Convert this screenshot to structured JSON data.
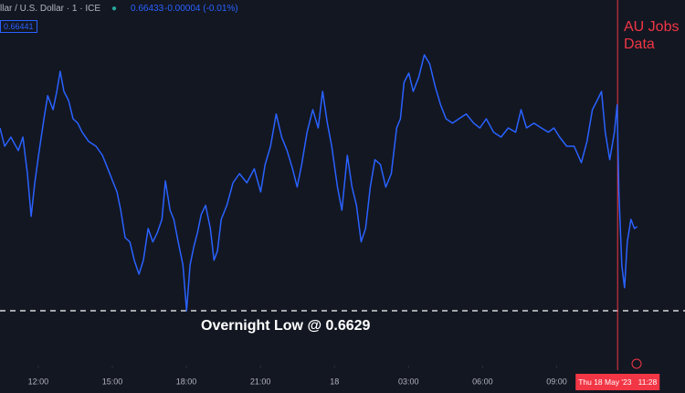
{
  "header": {
    "symbol": "llar / U.S. Dollar · 1 · ICE",
    "price": "0.66433",
    "change": "-0.00004 (-0.01%)",
    "price_label": "0.66441"
  },
  "chart_data": {
    "type": "line",
    "color": "#2962ff",
    "xlim": [
      -1.55,
      26.2
    ],
    "ylim": [
      0.662,
      0.668
    ],
    "xticks": [
      {
        "value": 0,
        "label": "12:00"
      },
      {
        "value": 3,
        "label": "15:00"
      },
      {
        "value": 6,
        "label": "18:00"
      },
      {
        "value": 9,
        "label": "21:00"
      },
      {
        "value": 12,
        "label": "18"
      },
      {
        "value": 15,
        "label": "03:00"
      },
      {
        "value": 18,
        "label": "06:00"
      },
      {
        "value": 21,
        "label": "09:00"
      }
    ],
    "x": [
      -1.55,
      -1.36,
      -1.11,
      -0.81,
      -0.62,
      -0.44,
      -0.29,
      -0.14,
      0.01,
      0.23,
      0.38,
      0.6,
      0.75,
      0.89,
      1.04,
      1.23,
      1.41,
      1.6,
      1.78,
      2.04,
      2.34,
      2.6,
      2.82,
      3.04,
      3.19,
      3.34,
      3.52,
      3.71,
      3.89,
      4.08,
      4.26,
      4.45,
      4.64,
      4.82,
      5.01,
      5.15,
      5.34,
      5.49,
      5.67,
      5.86,
      6.01,
      6.15,
      6.3,
      6.45,
      6.6,
      6.78,
      6.97,
      7.12,
      7.26,
      7.41,
      7.64,
      7.89,
      8.15,
      8.45,
      8.75,
      9.01,
      9.19,
      9.41,
      9.64,
      9.86,
      10.08,
      10.3,
      10.49,
      10.67,
      10.89,
      11.12,
      11.34,
      11.52,
      11.71,
      11.89,
      12.12,
      12.3,
      12.52,
      12.71,
      12.89,
      13.08,
      13.26,
      13.45,
      13.64,
      13.86,
      14.08,
      14.3,
      14.52,
      14.67,
      14.82,
      15.01,
      15.19,
      15.41,
      15.64,
      15.86,
      16.08,
      16.3,
      16.52,
      16.78,
      17.04,
      17.34,
      17.64,
      17.89,
      18.15,
      18.45,
      18.75,
      19.04,
      19.34,
      19.56,
      19.78,
      20.08,
      20.38,
      20.67,
      20.89,
      21.12,
      21.41,
      21.71,
      22.0,
      22.23,
      22.45,
      22.64,
      22.82,
      22.97,
      23.15,
      23.34,
      23.45,
      23.52,
      23.64,
      23.75,
      23.86,
      24.01,
      24.15,
      24.26
    ],
    "values": [
      0.6659,
      0.6656,
      0.66575,
      0.66553,
      0.66575,
      0.66515,
      0.66445,
      0.665,
      0.66545,
      0.66605,
      0.66643,
      0.6662,
      0.6665,
      0.66683,
      0.6665,
      0.66635,
      0.66605,
      0.66598,
      0.66583,
      0.66568,
      0.6656,
      0.66545,
      0.66523,
      0.665,
      0.66485,
      0.66455,
      0.6641,
      0.66403,
      0.66373,
      0.6635,
      0.66373,
      0.66425,
      0.66403,
      0.66418,
      0.6644,
      0.66503,
      0.66455,
      0.6644,
      0.66403,
      0.66365,
      0.6629,
      0.66365,
      0.66395,
      0.66418,
      0.66448,
      0.66463,
      0.66425,
      0.66373,
      0.66388,
      0.6644,
      0.66463,
      0.665,
      0.66515,
      0.665,
      0.66523,
      0.66485,
      0.6653,
      0.6656,
      0.66613,
      0.66575,
      0.66553,
      0.66523,
      0.66493,
      0.6653,
      0.66583,
      0.6662,
      0.6659,
      0.6665,
      0.66598,
      0.6656,
      0.66493,
      0.66455,
      0.66545,
      0.66493,
      0.66463,
      0.66403,
      0.66425,
      0.66493,
      0.66538,
      0.6653,
      0.66493,
      0.66515,
      0.6659,
      0.66605,
      0.66665,
      0.6668,
      0.6665,
      0.66673,
      0.6671,
      0.66695,
      0.66658,
      0.66628,
      0.66605,
      0.66598,
      0.66605,
      0.66613,
      0.66598,
      0.6659,
      0.66605,
      0.66583,
      0.66575,
      0.6659,
      0.66583,
      0.6662,
      0.6659,
      0.66598,
      0.6659,
      0.66583,
      0.6659,
      0.66575,
      0.6656,
      0.6656,
      0.66533,
      0.66568,
      0.6662,
      0.66635,
      0.6665,
      0.66583,
      0.66538,
      0.66583,
      0.66628,
      0.66485,
      0.66365,
      0.66328,
      0.66403,
      0.6644,
      0.66425,
      0.66428
    ],
    "hline": {
      "y": 0.6629,
      "text": "Overnight Low @ 0.6629"
    },
    "event": {
      "x": 23.47,
      "text": "AU Jobs Data",
      "time_label": "Thu 18 May '23   11:28"
    }
  }
}
